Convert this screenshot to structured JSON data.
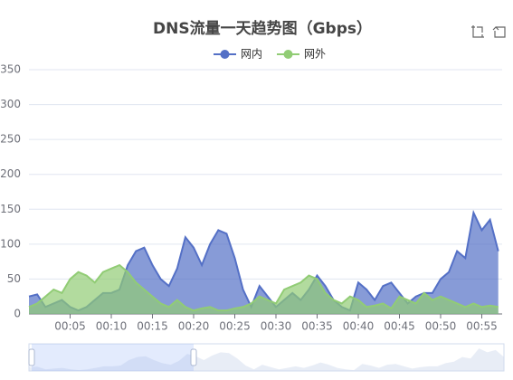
{
  "chart_data": {
    "type": "area",
    "title": "DNS流量一天趋势图（Gbps）",
    "categories": [
      "00:00",
      "00:01",
      "00:02",
      "00:03",
      "00:04",
      "00:05",
      "00:06",
      "00:07",
      "00:08",
      "00:09",
      "00:10",
      "00:11",
      "00:12",
      "00:13",
      "00:14",
      "00:15",
      "00:16",
      "00:17",
      "00:18",
      "00:19",
      "00:20",
      "00:21",
      "00:22",
      "00:23",
      "00:24",
      "00:25",
      "00:26",
      "00:27",
      "00:28",
      "00:29",
      "00:30",
      "00:31",
      "00:32",
      "00:33",
      "00:34",
      "00:35",
      "00:36",
      "00:37",
      "00:38",
      "00:39",
      "00:40",
      "00:41",
      "00:42",
      "00:43",
      "00:44",
      "00:45",
      "00:46",
      "00:47",
      "00:48",
      "00:49",
      "00:50",
      "00:51",
      "00:52",
      "00:53",
      "00:54",
      "00:55",
      "00:56",
      "00:57"
    ],
    "series": [
      {
        "name": "网内",
        "color": "#5470c6",
        "values": [
          25,
          28,
          10,
          15,
          20,
          10,
          5,
          10,
          20,
          30,
          30,
          35,
          70,
          90,
          95,
          70,
          50,
          40,
          65,
          110,
          95,
          70,
          100,
          120,
          115,
          80,
          35,
          10,
          40,
          25,
          10,
          20,
          30,
          20,
          35,
          55,
          40,
          20,
          10,
          5,
          45,
          35,
          20,
          40,
          45,
          30,
          15,
          25,
          30,
          30,
          50,
          60,
          90,
          80,
          145,
          120,
          135,
          90
        ]
      },
      {
        "name": "网外",
        "color": "#91cc75",
        "values": [
          10,
          15,
          25,
          35,
          30,
          50,
          60,
          55,
          45,
          60,
          65,
          70,
          60,
          45,
          35,
          25,
          15,
          10,
          20,
          10,
          5,
          8,
          10,
          5,
          5,
          8,
          10,
          15,
          25,
          20,
          15,
          35,
          40,
          45,
          55,
          50,
          30,
          20,
          15,
          25,
          20,
          10,
          12,
          15,
          8,
          25,
          20,
          15,
          30,
          20,
          25,
          20,
          15,
          10,
          15,
          10,
          12,
          10
        ]
      }
    ],
    "ylim": [
      0,
      350
    ],
    "yticks": [
      0,
      50,
      100,
      150,
      200,
      250,
      300,
      350
    ],
    "grid": true,
    "legend": "top"
  }
}
